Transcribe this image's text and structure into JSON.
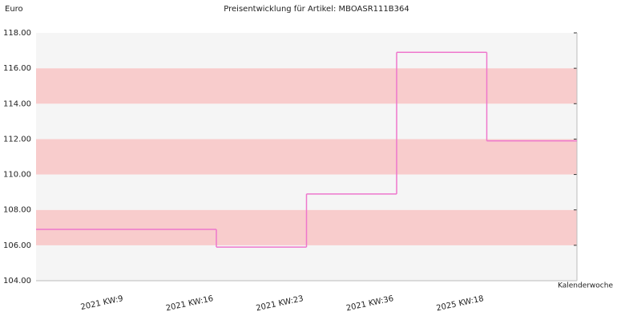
{
  "chart_data": {
    "type": "step",
    "title": "Preisentwicklung für Artikel: MBOASR111B364",
    "y_label": "Euro",
    "x_label": "Kalenderwoche",
    "categories": [
      "2021 KW:9",
      "2021 KW:16",
      "2021 KW:23",
      "2021 KW:36",
      "2025 KW:18",
      null
    ],
    "values": [
      106.9,
      106.9,
      105.9,
      108.9,
      116.9,
      111.9
    ],
    "color": "#ee77cc",
    "ylim": [
      104,
      118
    ],
    "yticks": [
      {
        "value": 104,
        "label": "104.00"
      },
      {
        "value": 106,
        "label": "106.00"
      },
      {
        "value": 108,
        "label": "108.00"
      },
      {
        "value": 110,
        "label": "110.00"
      },
      {
        "value": 112,
        "label": "112.00"
      },
      {
        "value": 114,
        "label": "114.00"
      },
      {
        "value": 116,
        "label": "116.00"
      },
      {
        "value": 118,
        "label": "118.00"
      }
    ],
    "band_colors": [
      "#f5f5f5",
      "#f8cccc"
    ]
  }
}
